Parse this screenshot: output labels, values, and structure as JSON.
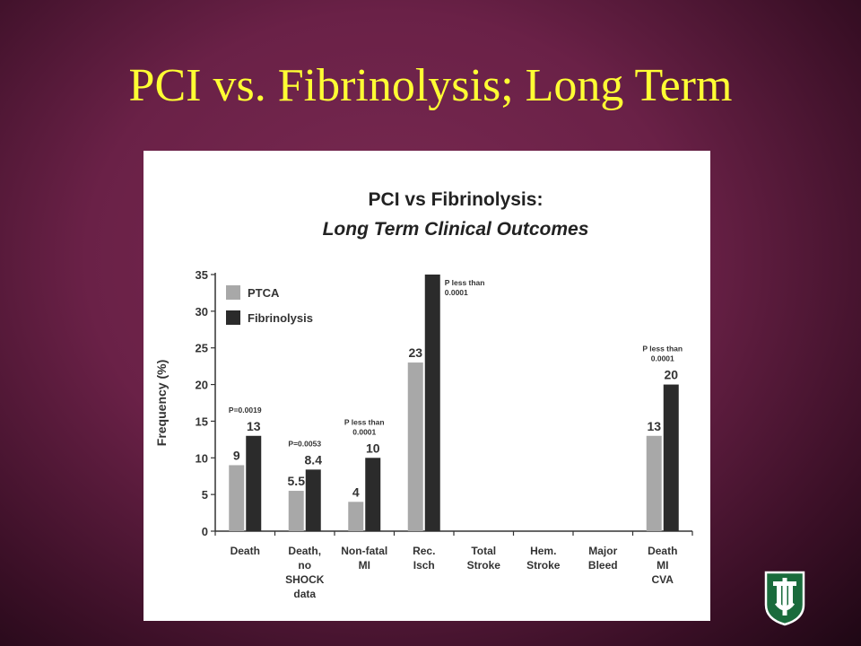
{
  "slide": {
    "title": "PCI vs. Fibrinolysis; Long Term"
  },
  "colors": {
    "ptca": "#a8a8a8",
    "fibrinolysis": "#2b2b2b",
    "title": "#ffff33",
    "logo_green": "#1a6b3c"
  },
  "chart_data": {
    "type": "bar",
    "title": "PCI vs Fibrinolysis:",
    "subtitle": "Long Term Clinical Outcomes",
    "ylabel": "Frequency (%)",
    "ylim": [
      0,
      35
    ],
    "yticks": [
      "0",
      "5",
      "10",
      "15",
      "20",
      "25",
      "30",
      "35"
    ],
    "legend_position": "top-left",
    "categories": [
      [
        "Death"
      ],
      [
        "Death,",
        "no",
        "SHOCK",
        "data"
      ],
      [
        "Non-fatal",
        "MI"
      ],
      [
        "Rec.",
        "Isch"
      ],
      [
        "Total",
        "Stroke"
      ],
      [
        "Hem.",
        "Stroke"
      ],
      [
        "Major",
        "Bleed"
      ],
      [
        "Death",
        "MI",
        "CVA"
      ]
    ],
    "series": [
      {
        "name": "PTCA",
        "values": [
          9,
          5.5,
          4,
          23,
          0,
          0,
          0,
          13
        ],
        "labels": [
          "9",
          "5.5",
          "4",
          "23",
          "",
          "",
          "",
          "13"
        ]
      },
      {
        "name": "Fibrinolysis",
        "values": [
          13,
          8.4,
          10,
          35,
          0,
          0,
          0,
          20
        ],
        "labels": [
          "13",
          "8.4",
          "10",
          "",
          "",
          "",
          "",
          "20"
        ]
      }
    ],
    "annotations": [
      [
        "P=0.0019"
      ],
      [
        "P=0.0053"
      ],
      [
        "P less than",
        "0.0001"
      ],
      [
        "P less than",
        "0.0001"
      ],
      [],
      [],
      [],
      [
        "P less than",
        "0.0001"
      ]
    ]
  }
}
